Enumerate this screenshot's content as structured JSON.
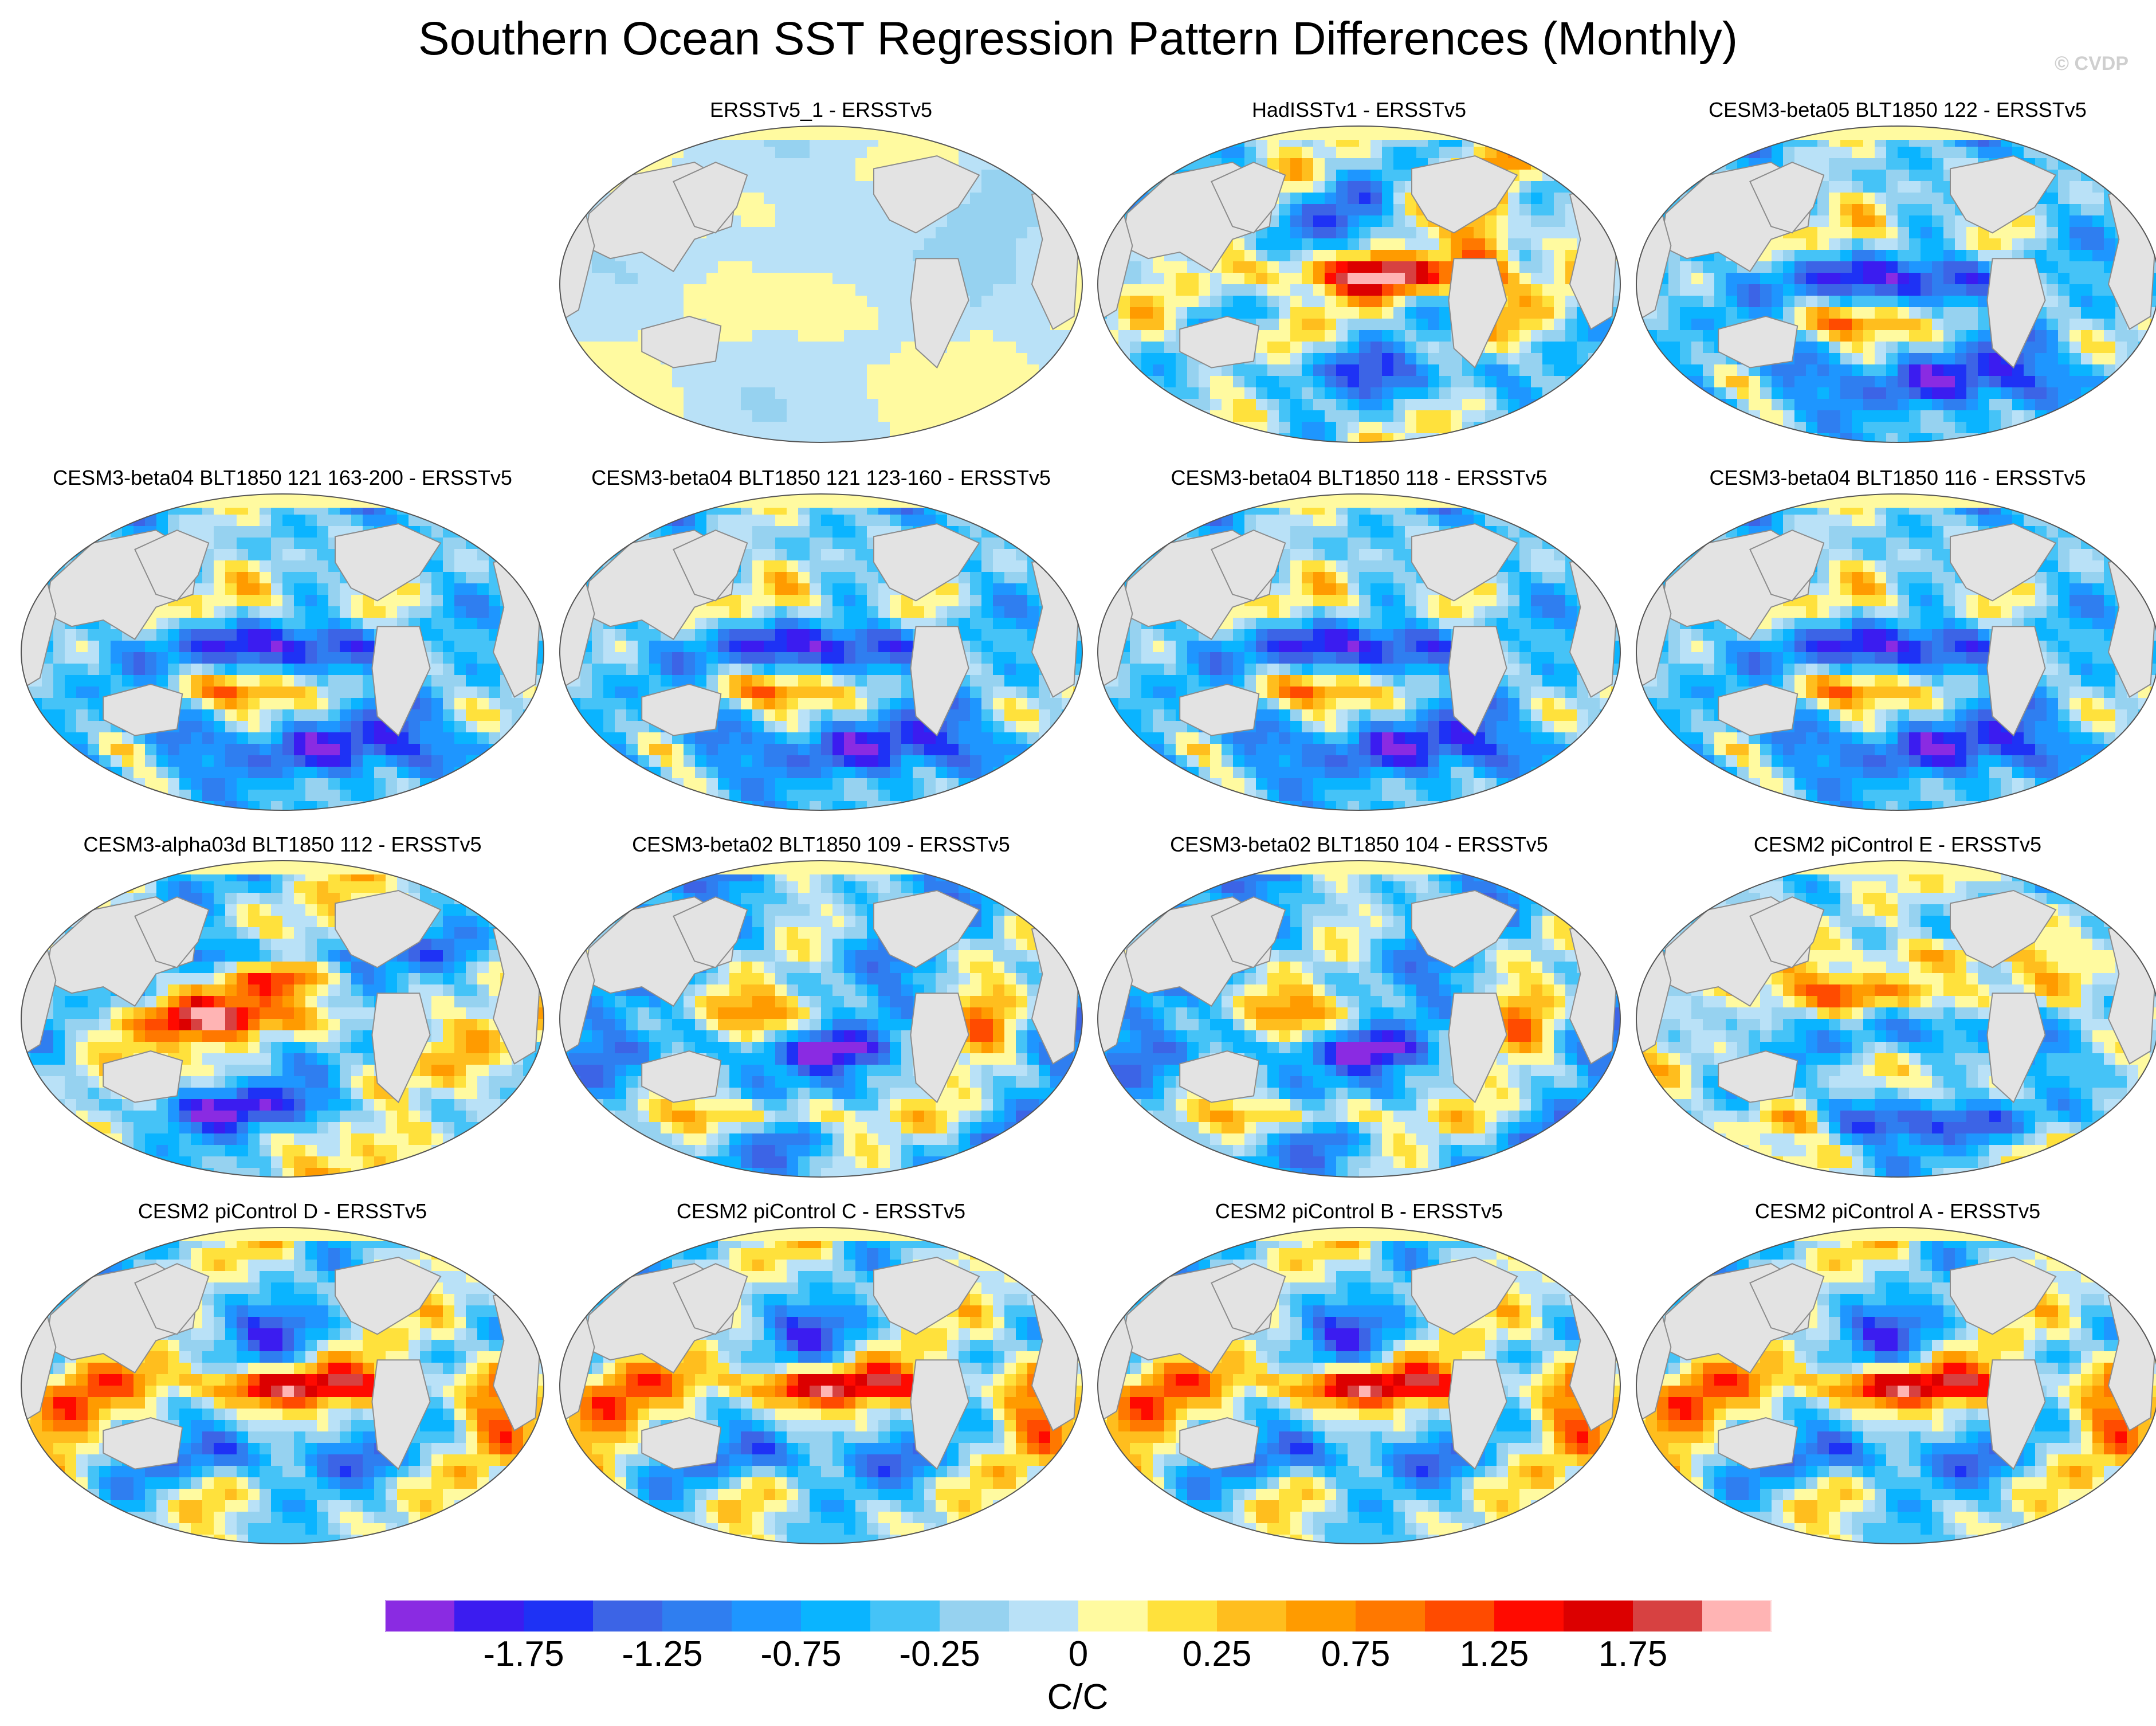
{
  "title": "Southern Ocean SST Regression Pattern Differences (Monthly)",
  "watermark": "© CVDP",
  "panels": [
    {
      "title": "ERSSTv5_1 - ERSSTv5",
      "pattern": "weak"
    },
    {
      "title": "HadISSTv1 - ERSSTv5",
      "pattern": "hadisst"
    },
    {
      "title": "CESM3-beta05 BLT1850 122 - ERSSTv5",
      "pattern": "model"
    },
    {
      "title": "CESM3-beta04 BLT1850 121 163-200 - ERSSTv5",
      "pattern": "model"
    },
    {
      "title": "CESM3-beta04 BLT1850 121 123-160 - ERSSTv5",
      "pattern": "model"
    },
    {
      "title": "CESM3-beta04 BLT1850 118 - ERSSTv5",
      "pattern": "model"
    },
    {
      "title": "CESM3-beta04 BLT1850 116 - ERSSTv5",
      "pattern": "model"
    },
    {
      "title": "CESM3-alpha03d BLT1850 112 - ERSSTv5",
      "pattern": "alpha"
    },
    {
      "title": "CESM3-beta02 BLT1850 109 - ERSSTv5",
      "pattern": "beta02"
    },
    {
      "title": "CESM3-beta02 BLT1850 104 - ERSSTv5",
      "pattern": "beta02"
    },
    {
      "title": "CESM2 piControl E - ERSSTv5",
      "pattern": "cesm2"
    },
    {
      "title": "CESM2 piControl D - ERSSTv5",
      "pattern": "cesm2warm"
    },
    {
      "title": "CESM2 piControl C - ERSSTv5",
      "pattern": "cesm2warm"
    },
    {
      "title": "CESM2 piControl B - ERSSTv5",
      "pattern": "cesm2warm"
    },
    {
      "title": "CESM2 piControl A - ERSSTv5",
      "pattern": "cesm2warm"
    }
  ],
  "colorbar": {
    "colors": [
      "#8a2be2",
      "#3b1cf0",
      "#1e32f5",
      "#3c64e6",
      "#2f7ef0",
      "#1e96ff",
      "#0ab4ff",
      "#45c3f7",
      "#96d2f0",
      "#b9e1f7",
      "#fffaa0",
      "#ffe13c",
      "#ffbe1e",
      "#ff9b00",
      "#ff7800",
      "#ff4b00",
      "#ff0a00",
      "#dc0000",
      "#d74141",
      "#ffb4b4"
    ],
    "labels": [
      "-1.75",
      "-1.25",
      "-0.75",
      "-0.25",
      "0",
      "0.25",
      "0.75",
      "1.25",
      "1.75"
    ],
    "units": "C/C"
  },
  "map_colors": {
    "land": "#e3e3e3",
    "coast": "#8c8c8c",
    "ice": "#ffffff"
  }
}
